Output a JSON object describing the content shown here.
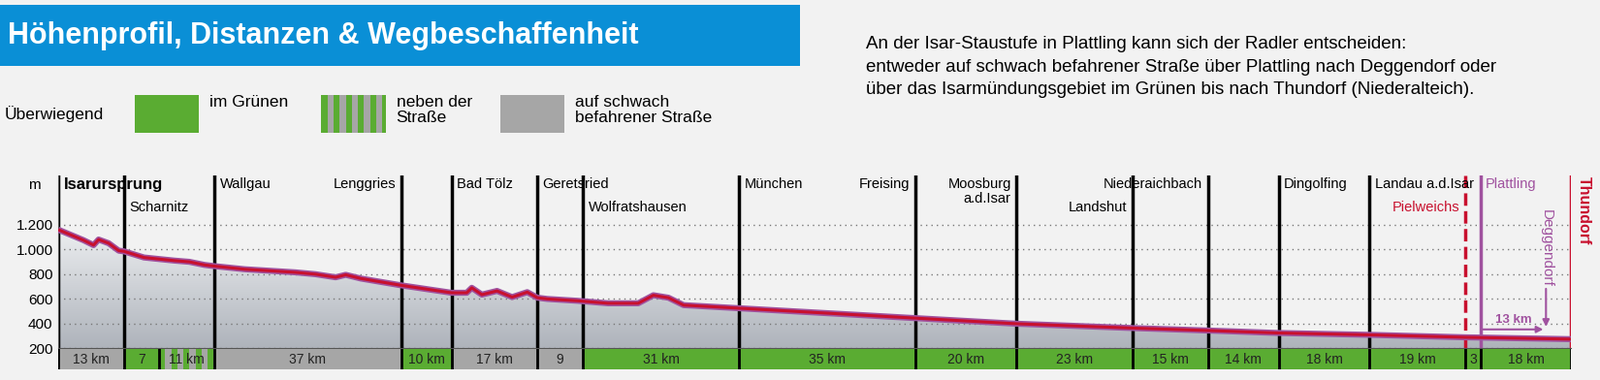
{
  "header": {
    "title": "Höhenprofil, Distanzen & Wegbeschaffenheit"
  },
  "legend": {
    "label": "Überwiegend",
    "items": [
      {
        "label": "im Grünen",
        "color": "#5aac32"
      },
      {
        "label": "neben der\nStraße",
        "colors": [
          "#5aac32",
          "#a6a6a6"
        ]
      },
      {
        "label": "auf schwach\nbefahrener Straße",
        "color": "#a6a6a6"
      }
    ]
  },
  "note": "An der Isar-Staustufe in Plattling kann sich der Radler entscheiden:\nentweder auf schwach befahrener Straße über Plattling nach Deggendorf oder\nüber das Isarmündungsgebiet im Grünen bis nach Thundorf (Niederalteich).",
  "chart_data": {
    "type": "area",
    "y_label": "m",
    "xlim": [
      0,
      300
    ],
    "ylim": [
      200,
      1600
    ],
    "yticks": [
      200,
      400,
      600,
      800,
      {
        "value": 1000,
        "label": "1.000"
      },
      {
        "value": 1200,
        "label": "1.200"
      }
    ],
    "grid": true,
    "tick_labels": "y",
    "color": "#c8102e",
    "x": [
      0,
      5,
      7,
      8,
      10,
      12,
      13,
      17,
      23,
      26,
      29,
      31,
      37,
      41,
      47,
      51,
      55,
      57,
      60,
      68,
      78,
      81,
      82,
      84,
      87,
      90,
      93,
      95,
      97,
      103,
      109,
      115,
      118,
      121,
      124,
      135,
      170,
      190,
      213,
      228,
      242,
      260,
      279,
      282,
      300
    ],
    "values": [
      1160,
      1075,
      1035,
      1080,
      1050,
      990,
      985,
      935,
      910,
      900,
      875,
      865,
      840,
      830,
      815,
      800,
      775,
      795,
      765,
      710,
      650,
      650,
      690,
      635,
      665,
      615,
      655,
      610,
      600,
      585,
      565,
      565,
      630,
      610,
      550,
      525,
      445,
      400,
      365,
      345,
      325,
      310,
      290,
      288,
      275
    ],
    "places": [
      {
        "name": "Isarursprung",
        "km": 0
      },
      {
        "name": "Scharnitz",
        "km": 13
      },
      {
        "name": "Wallgau",
        "km": 31
      },
      {
        "name": "Lenggries",
        "km": 68
      },
      {
        "name": "Bad Tölz",
        "km": 78
      },
      {
        "name": "Geretsried",
        "km": 95
      },
      {
        "name": "Wolfratshausen",
        "km": 104
      },
      {
        "name": "München",
        "km": 135
      },
      {
        "name": "Freising",
        "km": 170
      },
      {
        "name": "Moosburg\na.d.Isar",
        "km": 190
      },
      {
        "name": "Landshut",
        "km": 213
      },
      {
        "name": "Niederaichbach",
        "km": 228
      },
      {
        "name": "Dingolfing",
        "km": 242
      },
      {
        "name": "Landau a.d.Isar",
        "km": 260
      },
      {
        "name": "Pielweichs",
        "km": 279,
        "color": "#c8102e",
        "line_style": "dashed"
      },
      {
        "name": "Plattling",
        "km": 282,
        "color": "#a0529f"
      },
      {
        "name": "Thundorf",
        "km": 300,
        "color": "#c8102e"
      }
    ],
    "segments": [
      {
        "km": 13,
        "label": "13 km",
        "surface": "auf schwach\nbefahrener Straße"
      },
      {
        "km": 7,
        "label": "7",
        "surface": "im Grünen"
      },
      {
        "km": 11,
        "label": "11 km",
        "surface": "neben der\nStraße"
      },
      {
        "km": 37,
        "label": "37 km",
        "surface": "auf schwach\nbefahrener Straße"
      },
      {
        "km": 10,
        "label": "10 km",
        "surface": "im Grünen"
      },
      {
        "km": 17,
        "label": "17 km",
        "surface": "auf schwach\nbefahrener Straße"
      },
      {
        "km": 9,
        "label": "9",
        "surface": "auf schwach\nbefahrener Straße"
      },
      {
        "km": 31,
        "label": "31 km",
        "surface": "im Grünen"
      },
      {
        "km": 35,
        "label": "35 km",
        "surface": "im Grünen"
      },
      {
        "km": 20,
        "label": "20 km",
        "surface": "im Grünen"
      },
      {
        "km": 23,
        "label": "23 km",
        "surface": "im Grünen"
      },
      {
        "km": 15,
        "label": "15 km",
        "surface": "im Grünen"
      },
      {
        "km": 14,
        "label": "14 km",
        "surface": "im Grünen"
      },
      {
        "km": 18,
        "label": "18 km",
        "surface": "im Grünen"
      },
      {
        "km": 19,
        "label": "19 km",
        "surface": "im Grünen"
      },
      {
        "km": 3,
        "label": "3",
        "surface": "im Grünen"
      },
      {
        "km": 18,
        "label": "18 km",
        "surface": "im Grünen"
      }
    ],
    "branch": {
      "name": "Deggendorf",
      "from_km": 282,
      "km": 13,
      "label": "13 km",
      "color": "#a0529f"
    }
  }
}
